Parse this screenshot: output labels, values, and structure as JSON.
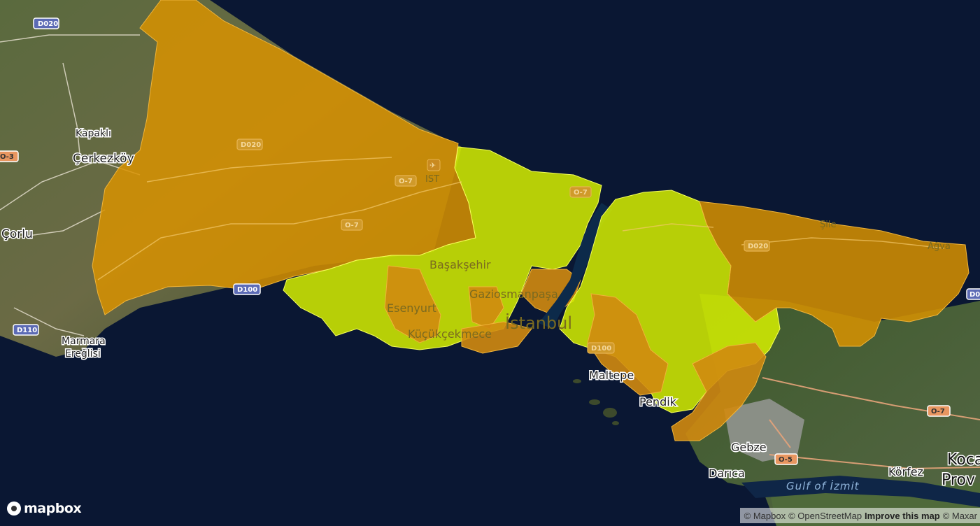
{
  "map": {
    "places": {
      "kapakli": "Kapaklı",
      "cerkezkoy": "Çerkezköy",
      "corlu": "Çorlu",
      "marmara_ereglisi_1": "Marmara",
      "marmara_ereglisi_2": "Ereğlisi",
      "ist": "IST",
      "sile": "Şile",
      "agva": "Ağva",
      "basaksehir": "Başakşehir",
      "esenyurt": "Esenyurt",
      "gaziosmanpasa": "Gaziosmanpaşa",
      "istanbul": "İstanbul",
      "kucukcekmece": "Küçükçekmece",
      "maltepe": "Maltepe",
      "pendik": "Pendik",
      "gebze": "Gebze",
      "darica": "Darıca",
      "korfez": "Körfez",
      "koca": "Koca",
      "prov": "Prov",
      "gulf_izmit": "Gulf of İzmit"
    },
    "shields": {
      "d020_nw": "D020",
      "o3": "O-3",
      "d110": "D110",
      "d020_mid": "D020",
      "o7_a": "O-7",
      "o7_b": "O-7",
      "d100_w": "D100",
      "o7_c": "O-7",
      "d020_e": "D020",
      "d100_e": "D100",
      "d0_right": "D0",
      "o7_east": "O-7",
      "o5": "O-5"
    },
    "colors": {
      "high": "#d89200",
      "low": "#d6f000",
      "water": "#0a1733",
      "land": "#4a5a33"
    }
  },
  "logo": {
    "text": "mapbox"
  },
  "attribution": {
    "mapbox": "© Mapbox",
    "osm": "© OpenStreetMap",
    "improve": "Improve this map",
    "maxar": "© Maxar"
  }
}
